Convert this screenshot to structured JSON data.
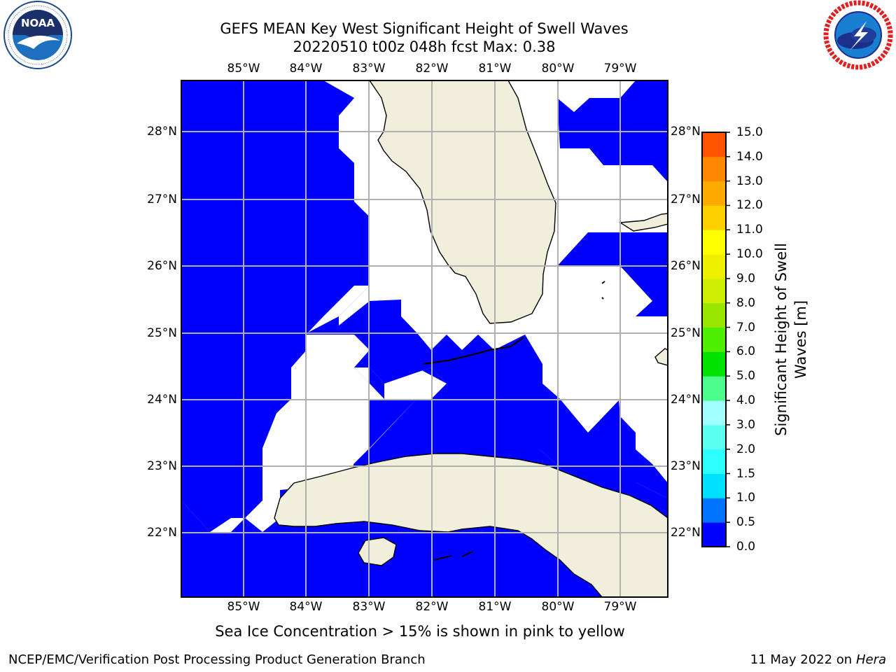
{
  "header": {
    "title_line1": "GEFS MEAN Key West Significant Height of Swell Waves",
    "title_line2": "20220510 t00z 048h fcst   Max: 0.38"
  },
  "logos": {
    "left": "noaa-logo-icon",
    "right": "nws-logo-icon"
  },
  "map": {
    "lon_labels": [
      "85°W",
      "84°W",
      "83°W",
      "82°W",
      "81°W",
      "80°W",
      "79°W"
    ],
    "lat_labels": [
      "28°N",
      "27°N",
      "26°N",
      "25°N",
      "24°N",
      "23°N",
      "22°N"
    ],
    "colors": {
      "ocean_low": "#0000ff",
      "land": "#efefdc",
      "grid": "#b0b0b0"
    }
  },
  "colorbar": {
    "label": "Significant Height of Swell Waves [m]",
    "tick_labels": [
      "0.0",
      "0.5",
      "1.0",
      "1.5",
      "2.0",
      "3.0",
      "4.0",
      "5.0",
      "6.0",
      "7.0",
      "8.0",
      "9.0",
      "10.0",
      "11.0",
      "12.0",
      "13.0",
      "14.0",
      "15.0"
    ],
    "colors": [
      "#0000ff",
      "#0073ff",
      "#00e1ff",
      "#2dffff",
      "#5dfff1",
      "#a0ffff",
      "#4dff8a",
      "#00e100",
      "#4dee00",
      "#99e600",
      "#ccee00",
      "#eef000",
      "#ffff00",
      "#ffd000",
      "#ffaa00",
      "#ff8800",
      "#ff5500",
      "#ff2a00",
      "#ff0000"
    ]
  },
  "note": "Sea Ice Concentration > 15% is shown in pink to yellow",
  "footer": {
    "left": "NCEP/EMC/Verification Post Processing Product Generation Branch",
    "right_date": "11 May 2022 on",
    "right_host": "Hera"
  }
}
